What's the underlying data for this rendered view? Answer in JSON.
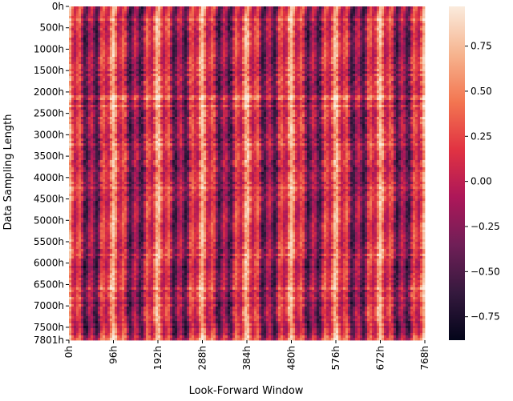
{
  "chart_data": {
    "type": "heatmap",
    "title": "",
    "xlabel": "Look-Forward Window",
    "ylabel": "Data Sampling Length",
    "x_tick_labels": [
      "0h",
      "96h",
      "192h",
      "288h",
      "384h",
      "480h",
      "576h",
      "672h",
      "768h"
    ],
    "x_tick_values": [
      0,
      96,
      192,
      288,
      384,
      480,
      576,
      672,
      768
    ],
    "y_tick_labels": [
      "0h",
      "500h",
      "1000h",
      "1500h",
      "2000h",
      "2500h",
      "3000h",
      "3500h",
      "4000h",
      "4500h",
      "5000h",
      "5500h",
      "6000h",
      "6500h",
      "7000h",
      "7500h",
      "7801h"
    ],
    "y_tick_values": [
      0,
      500,
      1000,
      1500,
      2000,
      2500,
      3000,
      3500,
      4000,
      4500,
      5000,
      5500,
      6000,
      6500,
      7000,
      7500,
      7801
    ],
    "x_range": [
      0,
      768
    ],
    "y_range": [
      0,
      7801
    ],
    "value_range": [
      -0.88,
      0.97
    ],
    "colorbar_ticks": [
      "0.75",
      "0.50",
      "0.25",
      "0.00",
      "−0.25",
      "−0.50",
      "−0.75"
    ],
    "colorbar_tick_values": [
      0.75,
      0.5,
      0.25,
      0.0,
      -0.25,
      -0.5,
      -0.75
    ],
    "colormap": "rocket",
    "colormap_stops": [
      "#03051a",
      "#35193e",
      "#701f57",
      "#ad1759",
      "#e13342",
      "#f37651",
      "#f6b48f",
      "#faebdd"
    ],
    "pattern": "Correlation oscillates with look-forward window; bright vertical bands near multiples of 24h, strongest near 96h, 192h, 288h, 384h, 480h, 576h, 672h, 768h; dark troughs between."
  }
}
